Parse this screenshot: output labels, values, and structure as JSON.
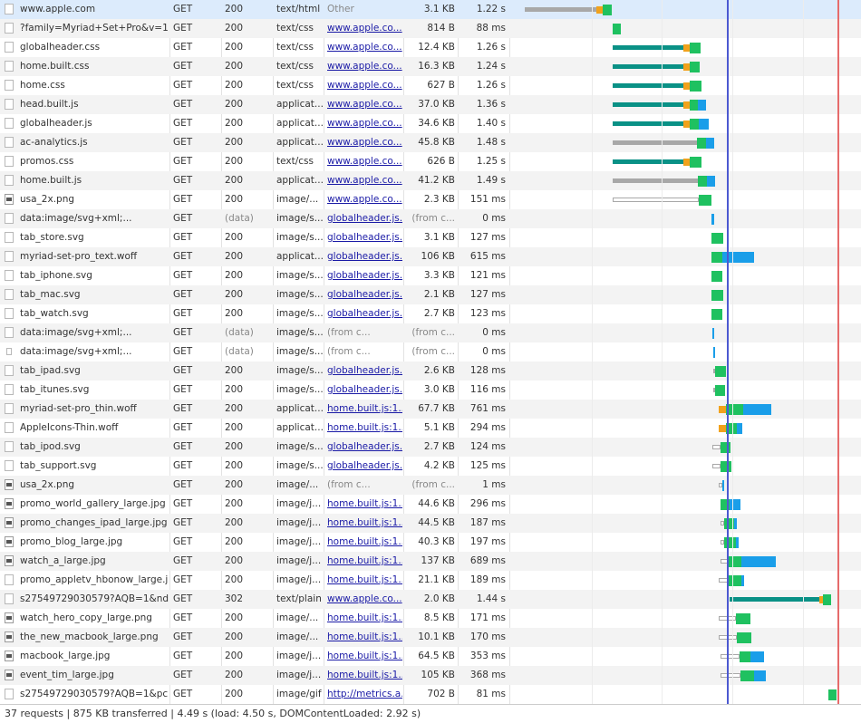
{
  "requests": [
    {
      "name": "www.apple.com",
      "method": "GET",
      "status": "200",
      "type": "text/html",
      "initiator": "Other",
      "size": "3.1 KB",
      "time": "1.22 s",
      "icon": "document-icon",
      "bars": [
        [
          "stall",
          579,
          658
        ],
        [
          "ssl",
          658,
          665
        ],
        [
          "ttfb",
          665,
          675
        ]
      ]
    },
    {
      "name": "?family=Myriad+Set+Pro&v=1",
      "method": "GET",
      "status": "200",
      "type": "text/css",
      "initiator": "www.apple.co...",
      "size": "814 B",
      "time": "88 ms",
      "icon": "document-icon",
      "bars": [
        [
          "ttfb",
          676,
          685
        ]
      ]
    },
    {
      "name": "globalheader.css",
      "method": "GET",
      "status": "200",
      "type": "text/css",
      "initiator": "www.apple.co...",
      "size": "12.4 KB",
      "time": "1.26 s",
      "icon": "document-icon",
      "bars": [
        [
          "wait",
          676,
          754
        ],
        [
          "ssl",
          754,
          761
        ],
        [
          "ttfb",
          761,
          773
        ]
      ]
    },
    {
      "name": "home.built.css",
      "method": "GET",
      "status": "200",
      "type": "text/css",
      "initiator": "www.apple.co...",
      "size": "16.3 KB",
      "time": "1.24 s",
      "icon": "document-icon",
      "bars": [
        [
          "wait",
          676,
          754
        ],
        [
          "ssl",
          754,
          761
        ],
        [
          "ttfb",
          761,
          772
        ]
      ]
    },
    {
      "name": "home.css",
      "method": "GET",
      "status": "200",
      "type": "text/css",
      "initiator": "www.apple.co...",
      "size": "627 B",
      "time": "1.26 s",
      "icon": "document-icon",
      "bars": [
        [
          "wait",
          676,
          754
        ],
        [
          "ssl",
          754,
          761
        ],
        [
          "ttfb",
          761,
          774
        ]
      ]
    },
    {
      "name": "head.built.js",
      "method": "GET",
      "status": "200",
      "type": "applicat...",
      "initiator": "www.apple.co...",
      "size": "37.0 KB",
      "time": "1.36 s",
      "icon": "document-icon",
      "bars": [
        [
          "wait",
          676,
          754
        ],
        [
          "ssl",
          754,
          761
        ],
        [
          "ttfb",
          761,
          770
        ],
        [
          "dl",
          770,
          779
        ]
      ]
    },
    {
      "name": "globalheader.js",
      "method": "GET",
      "status": "200",
      "type": "applicat...",
      "initiator": "www.apple.co...",
      "size": "34.6 KB",
      "time": "1.40 s",
      "icon": "document-icon",
      "bars": [
        [
          "wait",
          676,
          754
        ],
        [
          "ssl",
          754,
          761
        ],
        [
          "ttfb",
          761,
          771
        ],
        [
          "dl",
          771,
          782
        ]
      ]
    },
    {
      "name": "ac-analytics.js",
      "method": "GET",
      "status": "200",
      "type": "applicat...",
      "initiator": "www.apple.co...",
      "size": "45.8 KB",
      "time": "1.48 s",
      "icon": "document-icon",
      "bars": [
        [
          "stall",
          676,
          769
        ],
        [
          "ttfb",
          769,
          779
        ],
        [
          "dl",
          779,
          788
        ]
      ]
    },
    {
      "name": "promos.css",
      "method": "GET",
      "status": "200",
      "type": "text/css",
      "initiator": "www.apple.co...",
      "size": "626 B",
      "time": "1.25 s",
      "icon": "document-icon",
      "bars": [
        [
          "wait",
          676,
          754
        ],
        [
          "ssl",
          754,
          761
        ],
        [
          "ttfb",
          761,
          774
        ]
      ]
    },
    {
      "name": "home.built.js",
      "method": "GET",
      "status": "200",
      "type": "applicat...",
      "initiator": "www.apple.co...",
      "size": "41.2 KB",
      "time": "1.49 s",
      "icon": "document-icon",
      "bars": [
        [
          "stall",
          676,
          770
        ],
        [
          "ttfb",
          770,
          780
        ],
        [
          "dl",
          780,
          789
        ]
      ]
    },
    {
      "name": "usa_2x.png",
      "method": "GET",
      "status": "200",
      "type": "image/...",
      "initiator": "www.apple.co...",
      "size": "2.3 KB",
      "time": "151 ms",
      "icon": "image-icon",
      "bars": [
        [
          "queue",
          676,
          771
        ],
        [
          "ttfb",
          771,
          785
        ]
      ]
    },
    {
      "name": "data:image/svg+xml;...",
      "method": "GET",
      "status": "(data)",
      "type": "image/s...",
      "initiator": "globalheader.js...",
      "size": "(from c...",
      "time": "0 ms",
      "icon": "document-icon",
      "bars": [
        [
          "dl",
          785,
          788
        ]
      ]
    },
    {
      "name": "tab_store.svg",
      "method": "GET",
      "status": "200",
      "type": "image/s...",
      "initiator": "globalheader.js...",
      "size": "3.1 KB",
      "time": "127 ms",
      "icon": "document-icon",
      "bars": [
        [
          "ttfb",
          785,
          798
        ]
      ]
    },
    {
      "name": "myriad-set-pro_text.woff",
      "method": "GET",
      "status": "200",
      "type": "applicat...",
      "initiator": "globalheader.js...",
      "size": "106 KB",
      "time": "615 ms",
      "icon": "document-icon",
      "bars": [
        [
          "ttfb",
          785,
          797
        ],
        [
          "dl",
          797,
          832
        ]
      ]
    },
    {
      "name": "tab_iphone.svg",
      "method": "GET",
      "status": "200",
      "type": "image/s...",
      "initiator": "globalheader.js...",
      "size": "3.3 KB",
      "time": "121 ms",
      "icon": "document-icon",
      "bars": [
        [
          "ttfb",
          785,
          797
        ]
      ]
    },
    {
      "name": "tab_mac.svg",
      "method": "GET",
      "status": "200",
      "type": "image/s...",
      "initiator": "globalheader.js...",
      "size": "2.1 KB",
      "time": "127 ms",
      "icon": "document-icon",
      "bars": [
        [
          "ttfb",
          785,
          798
        ]
      ]
    },
    {
      "name": "tab_watch.svg",
      "method": "GET",
      "status": "200",
      "type": "image/s...",
      "initiator": "globalheader.js...",
      "size": "2.7 KB",
      "time": "123 ms",
      "icon": "document-icon",
      "bars": [
        [
          "ttfb",
          785,
          797
        ]
      ]
    },
    {
      "name": "data:image/svg+xml;...",
      "method": "GET",
      "status": "(data)",
      "type": "image/s...",
      "initiator": "(from c...",
      "size": "(from c...",
      "time": "0 ms",
      "icon": "document-icon",
      "bars": [
        [
          "dl",
          786,
          788
        ]
      ]
    },
    {
      "name": "data:image/svg+xml;...",
      "method": "GET",
      "status": "(data)",
      "type": "image/s...",
      "initiator": "(from c...",
      "size": "(from c...",
      "time": "0 ms",
      "icon": "small-image-icon",
      "bars": [
        [
          "dl",
          787,
          789
        ]
      ]
    },
    {
      "name": "tab_ipad.svg",
      "method": "GET",
      "status": "200",
      "type": "image/s...",
      "initiator": "globalheader.js...",
      "size": "2.6 KB",
      "time": "128 ms",
      "icon": "document-icon",
      "bars": [
        [
          "queue",
          787,
          789
        ],
        [
          "ttfb",
          789,
          801
        ]
      ]
    },
    {
      "name": "tab_itunes.svg",
      "method": "GET",
      "status": "200",
      "type": "image/s...",
      "initiator": "globalheader.js...",
      "size": "3.0 KB",
      "time": "116 ms",
      "icon": "document-icon",
      "bars": [
        [
          "queue",
          787,
          789
        ],
        [
          "ttfb",
          789,
          800
        ]
      ]
    },
    {
      "name": "myriad-set-pro_thin.woff",
      "method": "GET",
      "status": "200",
      "type": "applicat...",
      "initiator": "home.built.js:1...",
      "size": "67.7 KB",
      "time": "761 ms",
      "icon": "document-icon",
      "bars": [
        [
          "ssl",
          793,
          801
        ],
        [
          "ttfb",
          801,
          820
        ],
        [
          "dl",
          820,
          851
        ]
      ]
    },
    {
      "name": "AppleIcons-Thin.woff",
      "method": "GET",
      "status": "200",
      "type": "applicat...",
      "initiator": "home.built.js:1...",
      "size": "5.1 KB",
      "time": "294 ms",
      "icon": "document-icon",
      "bars": [
        [
          "ssl",
          793,
          801
        ],
        [
          "ttfb",
          801,
          813
        ],
        [
          "dl",
          813,
          819
        ]
      ]
    },
    {
      "name": "tab_ipod.svg",
      "method": "GET",
      "status": "200",
      "type": "image/s...",
      "initiator": "globalheader.js...",
      "size": "2.7 KB",
      "time": "124 ms",
      "icon": "document-icon",
      "bars": [
        [
          "queue",
          786,
          795
        ],
        [
          "ttfb",
          795,
          806
        ]
      ]
    },
    {
      "name": "tab_support.svg",
      "method": "GET",
      "status": "200",
      "type": "image/s...",
      "initiator": "globalheader.js...",
      "size": "4.2 KB",
      "time": "125 ms",
      "icon": "document-icon",
      "bars": [
        [
          "queue",
          786,
          795
        ],
        [
          "ttfb",
          795,
          807
        ]
      ]
    },
    {
      "name": "usa_2x.png",
      "method": "GET",
      "status": "200",
      "type": "image/...",
      "initiator": "(from c...",
      "size": "(from c...",
      "time": "1 ms",
      "icon": "image-icon",
      "bars": [
        [
          "queue",
          793,
          797
        ],
        [
          "dl",
          797,
          799
        ]
      ]
    },
    {
      "name": "promo_world_gallery_large.jpg",
      "method": "GET",
      "status": "200",
      "type": "image/j...",
      "initiator": "home.built.js:1...",
      "size": "44.6 KB",
      "time": "296 ms",
      "icon": "image-icon",
      "bars": [
        [
          "ttfb",
          795,
          805
        ],
        [
          "dl",
          805,
          817
        ]
      ]
    },
    {
      "name": "promo_changes_ipad_large.jpg",
      "method": "GET",
      "status": "200",
      "type": "image/j...",
      "initiator": "home.built.js:1...",
      "size": "44.5 KB",
      "time": "187 ms",
      "icon": "image-icon",
      "bars": [
        [
          "queue",
          795,
          799
        ],
        [
          "ttfb",
          799,
          810
        ],
        [
          "dl",
          810,
          813
        ]
      ]
    },
    {
      "name": "promo_blog_large.jpg",
      "method": "GET",
      "status": "200",
      "type": "image/j...",
      "initiator": "home.built.js:1...",
      "size": "40.3 KB",
      "time": "197 ms",
      "icon": "image-icon",
      "bars": [
        [
          "queue",
          795,
          799
        ],
        [
          "ttfb",
          799,
          812
        ],
        [
          "dl",
          812,
          815
        ]
      ]
    },
    {
      "name": "watch_a_large.jpg",
      "method": "GET",
      "status": "200",
      "type": "image/j...",
      "initiator": "home.built.js:1...",
      "size": "137 KB",
      "time": "689 ms",
      "icon": "image-icon",
      "bars": [
        [
          "queue",
          795,
          803
        ],
        [
          "ttfb",
          803,
          818
        ],
        [
          "dl",
          818,
          856
        ]
      ]
    },
    {
      "name": "promo_appletv_hbonow_large.j...",
      "method": "GET",
      "status": "200",
      "type": "image/j...",
      "initiator": "home.built.js:1...",
      "size": "21.1 KB",
      "time": "189 ms",
      "icon": "document-icon",
      "bars": [
        [
          "queue",
          793,
          803
        ],
        [
          "ttfb",
          803,
          818
        ],
        [
          "dl",
          818,
          821
        ]
      ]
    },
    {
      "name": "s27549729030579?AQB=1&nd...",
      "method": "GET",
      "status": "302",
      "type": "text/plain",
      "initiator": "www.apple.co...",
      "size": "2.0 KB",
      "time": "1.44 s",
      "icon": "document-icon",
      "bars": [
        [
          "wait",
          805,
          904
        ],
        [
          "ssl",
          904,
          908
        ],
        [
          "ttfb",
          908,
          917
        ]
      ]
    },
    {
      "name": "watch_hero_copy_large.png",
      "method": "GET",
      "status": "200",
      "type": "image/...",
      "initiator": "home.built.js:1...",
      "size": "8.5 KB",
      "time": "171 ms",
      "icon": "image-icon",
      "bars": [
        [
          "queue",
          793,
          812
        ],
        [
          "ttfb",
          812,
          828
        ]
      ]
    },
    {
      "name": "the_new_macbook_large.png",
      "method": "GET",
      "status": "200",
      "type": "image/...",
      "initiator": "home.built.js:1...",
      "size": "10.1 KB",
      "time": "170 ms",
      "icon": "image-icon",
      "bars": [
        [
          "queue",
          793,
          813
        ],
        [
          "ttfb",
          813,
          829
        ]
      ]
    },
    {
      "name": "macbook_large.jpg",
      "method": "GET",
      "status": "200",
      "type": "image/j...",
      "initiator": "home.built.js:1...",
      "size": "64.5 KB",
      "time": "353 ms",
      "icon": "image-icon",
      "bars": [
        [
          "queue",
          795,
          816
        ],
        [
          "ttfb",
          816,
          828
        ],
        [
          "dl",
          828,
          843
        ]
      ]
    },
    {
      "name": "event_tim_large.jpg",
      "method": "GET",
      "status": "200",
      "type": "image/j...",
      "initiator": "home.built.js:1...",
      "size": "105 KB",
      "time": "368 ms",
      "icon": "image-icon",
      "bars": [
        [
          "queue",
          795,
          817
        ],
        [
          "ttfb",
          817,
          832
        ],
        [
          "dl",
          832,
          845
        ]
      ]
    },
    {
      "name": "s27549729030579?AQB=1&pc...",
      "method": "GET",
      "status": "200",
      "type": "image/gif",
      "initiator": "http://metrics.a...",
      "size": "702 B",
      "time": "81 ms",
      "icon": "document-icon",
      "bars": [
        [
          "ttfb",
          914,
          923
        ]
      ]
    }
  ],
  "statusbar": {
    "text": "37 requests | 875 KB transferred | 4.49 s (load: 4.50 s, DOMContentLoaded: 2.92 s)"
  },
  "colors": {
    "dom_content_loaded_line": "#4c59d1",
    "load_line": "#e66b6b",
    "ttfb": "#1fc160",
    "download": "#1a9ee9",
    "waiting": "#0a9186",
    "ssl": "#f1a21c",
    "stalled": "#a8a8a8"
  }
}
